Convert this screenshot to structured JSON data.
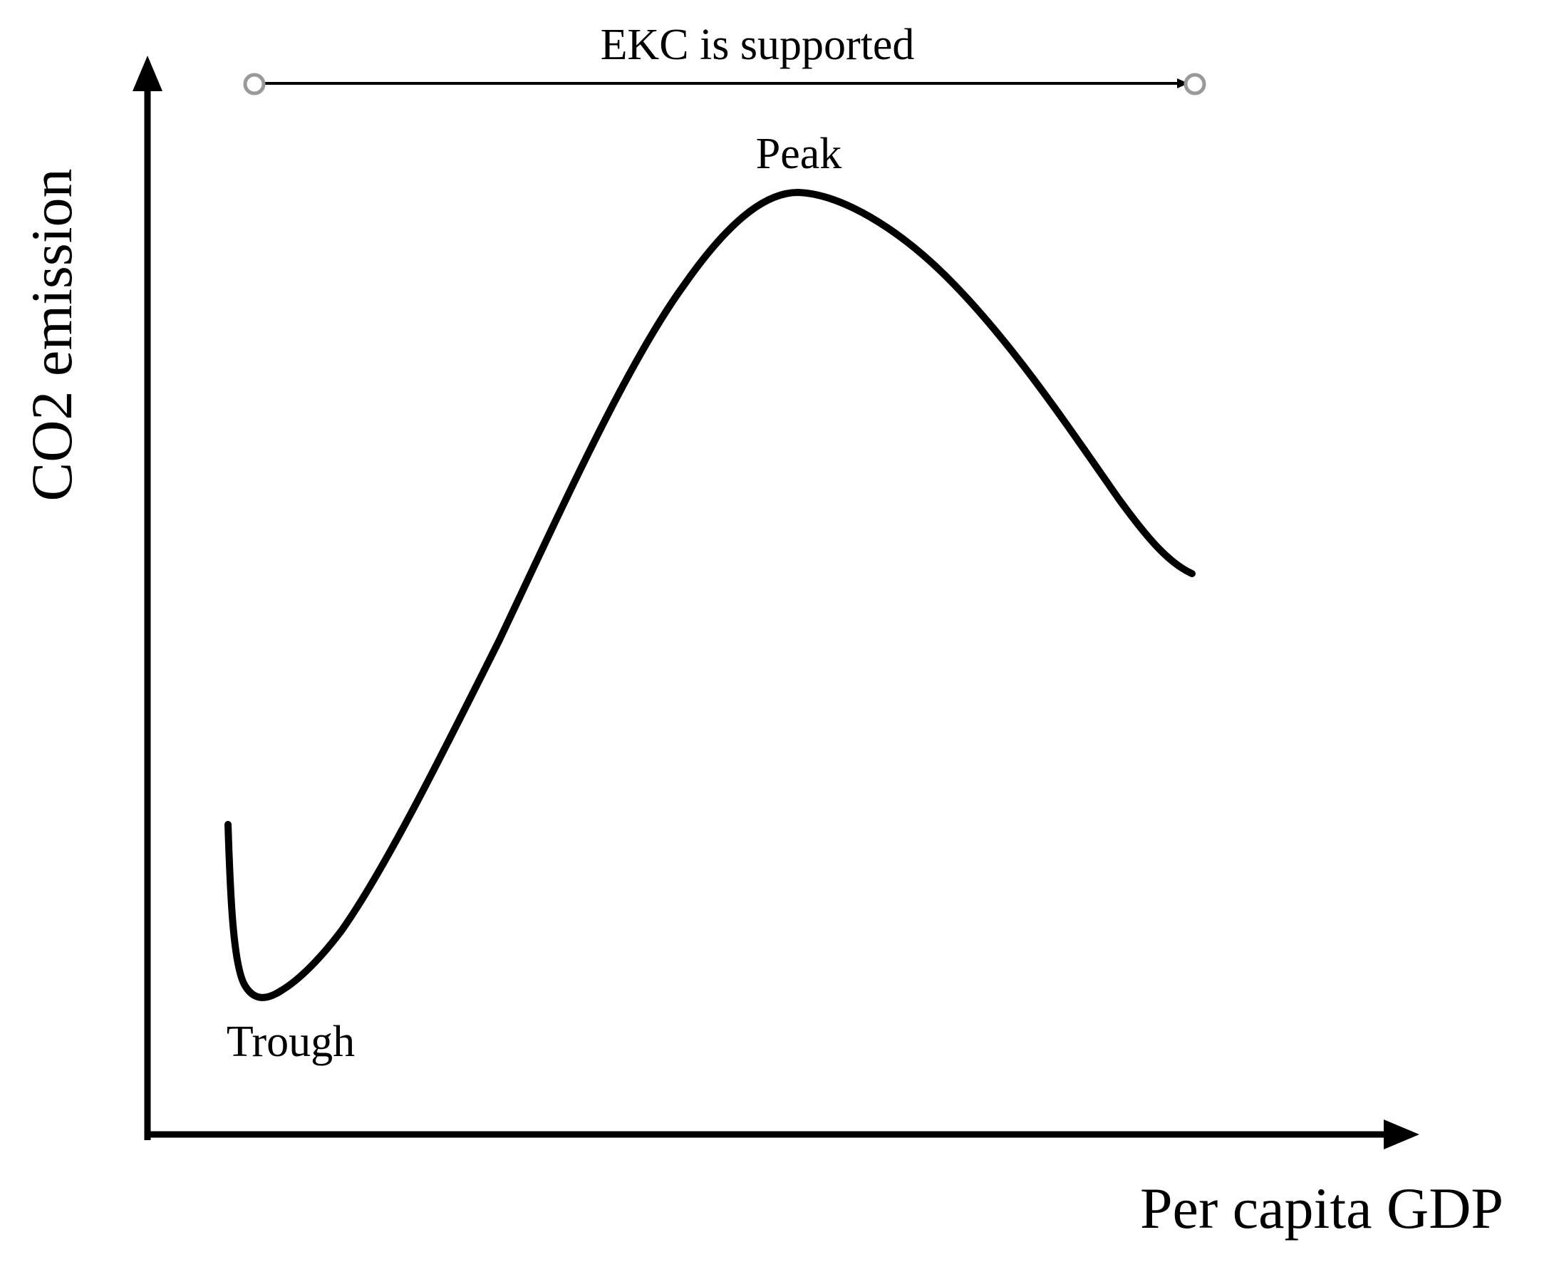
{
  "diagram": {
    "y_axis_label": "CO2 emission",
    "x_axis_label": "Per capita GDP",
    "range_label": "EKC is supported",
    "peak_label": "Peak",
    "trough_label": "Trough"
  },
  "colors": {
    "line": "#000000",
    "range_endpoint": "#999999",
    "background": "#ffffff"
  }
}
